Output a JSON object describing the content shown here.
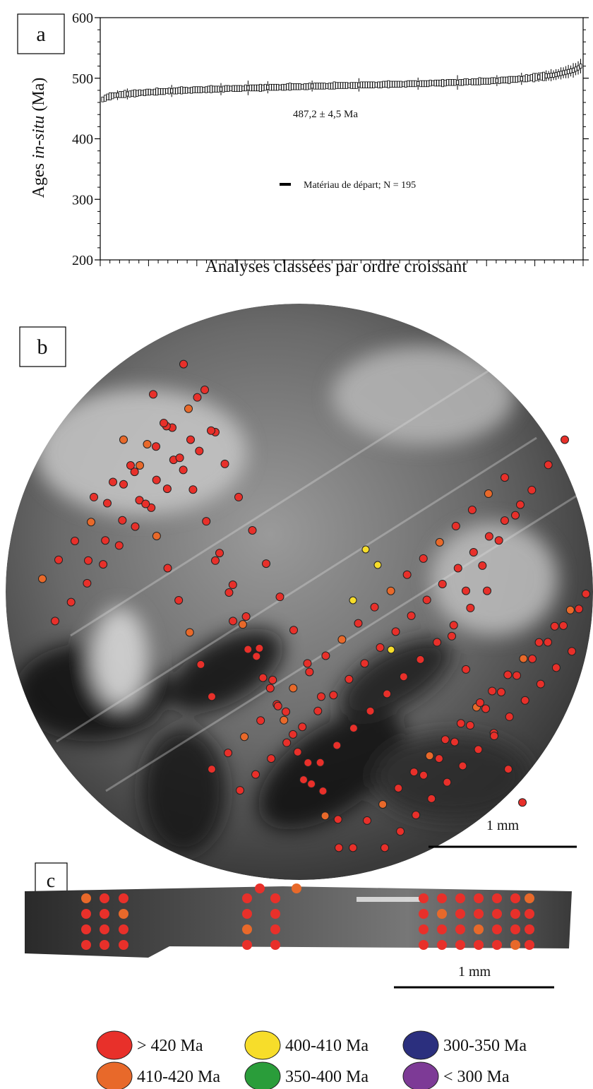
{
  "chart_data": {
    "type": "errorbar",
    "ylabel": [
      "Ages",
      "in-situ",
      "(Ma)"
    ],
    "xlabel": "Analyses classées par ordre croissant",
    "annotation": "487,2 ± 4,5 Ma",
    "ylim": [
      200,
      600
    ],
    "yticks": [
      200,
      300,
      400,
      500,
      600
    ],
    "series": [
      {
        "name": "Matériau de départ; N = 195",
        "color": "#000000",
        "values": [
          465,
          467,
          469,
          470,
          471,
          472,
          472,
          473,
          473,
          474,
          474,
          474,
          475,
          475,
          475,
          476,
          476,
          476,
          477,
          477,
          477,
          477,
          478,
          478,
          478,
          478,
          479,
          479,
          479,
          479,
          479,
          480,
          480,
          480,
          480,
          480,
          480,
          481,
          481,
          481,
          481,
          481,
          481,
          482,
          482,
          482,
          482,
          482,
          482,
          482,
          483,
          483,
          483,
          483,
          483,
          483,
          483,
          483,
          484,
          484,
          484,
          484,
          484,
          484,
          484,
          484,
          485,
          485,
          485,
          485,
          485,
          485,
          485,
          485,
          485,
          486,
          486,
          486,
          486,
          486,
          486,
          486,
          486,
          486,
          487,
          487,
          487,
          487,
          487,
          487,
          487,
          487,
          487,
          487,
          488,
          488,
          488,
          488,
          488,
          488,
          488,
          488,
          488,
          488,
          489,
          489,
          489,
          489,
          489,
          489,
          489,
          489,
          489,
          489,
          490,
          490,
          490,
          490,
          490,
          490,
          490,
          490,
          490,
          490,
          491,
          491,
          491,
          491,
          491,
          491,
          491,
          491,
          491,
          492,
          492,
          492,
          492,
          492,
          492,
          492,
          493,
          493,
          493,
          493,
          493,
          493,
          493,
          494,
          494,
          494,
          494,
          494,
          494,
          495,
          495,
          495,
          495,
          495,
          496,
          496,
          496,
          496,
          497,
          497,
          497,
          497,
          498,
          498,
          498,
          499,
          499,
          499,
          500,
          500,
          501,
          501,
          502,
          502,
          503,
          503,
          504,
          504,
          505,
          505,
          506,
          507,
          508,
          509,
          510,
          511,
          512,
          513,
          515,
          517,
          520
        ],
        "errors": [
          4,
          5,
          5,
          6,
          5,
          4,
          8,
          5,
          5,
          6,
          9,
          5,
          5,
          6,
          5,
          5,
          4,
          5,
          5,
          5,
          4,
          5,
          6,
          5,
          5,
          5,
          4,
          5,
          10,
          5,
          5,
          5,
          6,
          5,
          5,
          4,
          5,
          5,
          5,
          5,
          5,
          4,
          5,
          5,
          6,
          5,
          5,
          5,
          10,
          5,
          5,
          5,
          4,
          5,
          5,
          5,
          5,
          4,
          5,
          12,
          5,
          5,
          5,
          5,
          6,
          5,
          5,
          10,
          5,
          5,
          5,
          5,
          4,
          5,
          5,
          5,
          6,
          5,
          5,
          5,
          5,
          4,
          5,
          5,
          5,
          9,
          5,
          5,
          5,
          5,
          5,
          4,
          5,
          5,
          6,
          5,
          5,
          5,
          5,
          5,
          4,
          5,
          5,
          5,
          11,
          5,
          5,
          5,
          5,
          5,
          5,
          4,
          5,
          5,
          5,
          5,
          6,
          5,
          5,
          5,
          5,
          5,
          4,
          5,
          5,
          5,
          5,
          5,
          10,
          5,
          5,
          5,
          5,
          5,
          4,
          5,
          5,
          5,
          6,
          5,
          5,
          5,
          5,
          5,
          12,
          5,
          5,
          5,
          5,
          4,
          5,
          5,
          5,
          6,
          5,
          5,
          5,
          5,
          5,
          5,
          9,
          5,
          5,
          5,
          5,
          6,
          5,
          5,
          5,
          5,
          10,
          5,
          6,
          5,
          5,
          7,
          6,
          8,
          6,
          7,
          9,
          8,
          10,
          8,
          9,
          8,
          10,
          9,
          10,
          11,
          9,
          12,
          10,
          11,
          12
        ]
      }
    ]
  },
  "panels": {
    "a": "a",
    "b": "b",
    "c": "c"
  },
  "scale_bars": [
    "1 mm",
    "1 mm"
  ],
  "age_legend": [
    {
      "label": "> 420 Ma",
      "color": "#e8302a"
    },
    {
      "label": "410-420 Ma",
      "color": "#e8692a"
    },
    {
      "label": "400-410 Ma",
      "color": "#f7dd2a"
    },
    {
      "label": "350-400 Ma",
      "color": "#2a9d3a"
    },
    {
      "label": "300-350 Ma",
      "color": "#2b2f7e"
    },
    {
      "label": "< 300 Ma",
      "color": "#7d3a96"
    }
  ]
}
